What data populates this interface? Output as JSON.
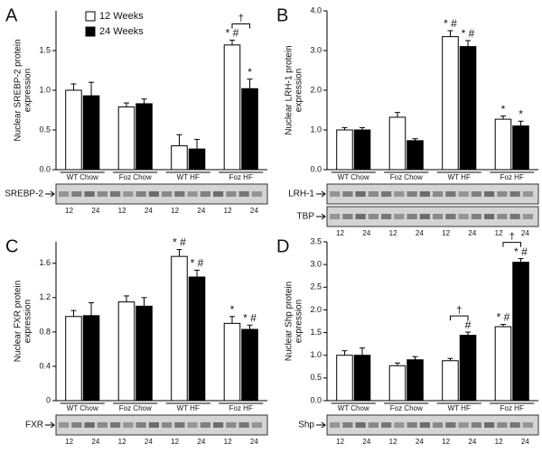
{
  "legend": [
    {
      "name": "12 Weeks",
      "color": "#ffffff"
    },
    {
      "name": "24 Weeks",
      "color": "#000000"
    }
  ],
  "chart_data": [
    {
      "type": "bar",
      "panel": "A",
      "y_label": [
        "Nuclear SREBP-2 protein",
        "expression"
      ],
      "categories": [
        "WT Chow",
        "Foz Chow",
        "WT HF",
        "Foz HF"
      ],
      "series": [
        {
          "color": "#ffffff",
          "values": [
            1.0,
            0.79,
            0.3,
            1.57
          ],
          "errors": [
            0.08,
            0.05,
            0.14,
            0.06
          ],
          "markers": [
            null,
            null,
            null,
            "* #"
          ]
        },
        {
          "color": "#000000",
          "values": [
            0.93,
            0.83,
            0.26,
            1.02
          ],
          "errors": [
            0.17,
            0.06,
            0.12,
            0.12
          ],
          "markers": [
            null,
            null,
            null,
            "*"
          ]
        }
      ],
      "brackets": [
        null,
        null,
        null,
        "†"
      ],
      "ylim": [
        0,
        2.0
      ],
      "yticks": [
        {
          "value": 0,
          "label": "0.0"
        },
        0.5,
        {
          "value": 1,
          "label": "1.0"
        },
        1.5
      ],
      "blots": [
        "SREBP-2"
      ],
      "lanes": [
        "12",
        "24",
        "12",
        "24",
        "12",
        "24",
        "12",
        "24"
      ]
    },
    {
      "type": "bar",
      "panel": "B",
      "y_label": [
        "Nuclear LRH-1 protein",
        "expression"
      ],
      "categories": [
        "WT Chow",
        "Foz Chow",
        "WT HF",
        "Foz HF"
      ],
      "series": [
        {
          "color": "#ffffff",
          "values": [
            1.0,
            1.32,
            3.35,
            1.27
          ],
          "errors": [
            0.06,
            0.12,
            0.15,
            0.08
          ],
          "markers": [
            null,
            null,
            "* #",
            "*"
          ]
        },
        {
          "color": "#000000",
          "values": [
            1.0,
            0.73,
            3.1,
            1.1
          ],
          "errors": [
            0.06,
            0.05,
            0.15,
            0.12
          ],
          "markers": [
            null,
            null,
            "* #",
            "*"
          ]
        }
      ],
      "brackets": [
        null,
        null,
        null,
        null
      ],
      "ylim": [
        0,
        4.0
      ],
      "yticks": [
        {
          "value": 0,
          "label": "0.0"
        },
        {
          "value": 1,
          "label": "1.0"
        },
        {
          "value": 2,
          "label": "2.0"
        },
        {
          "value": 3,
          "label": "3.0"
        },
        {
          "value": 4,
          "label": "4.0"
        }
      ],
      "blots": [
        "LRH-1",
        "TBP"
      ],
      "lanes": [
        "12",
        "24",
        "12",
        "24",
        "12",
        "24",
        "12",
        "24"
      ]
    },
    {
      "type": "bar",
      "panel": "C",
      "y_label": [
        "Nuclear FXR protein",
        "expression"
      ],
      "categories": [
        "WT Chow",
        "Foz Chow",
        "WT HF",
        "Foz HF"
      ],
      "series": [
        {
          "color": "#ffffff",
          "values": [
            0.98,
            1.15,
            1.68,
            0.9
          ],
          "errors": [
            0.07,
            0.07,
            0.08,
            0.08
          ],
          "markers": [
            null,
            null,
            "* #",
            "*"
          ]
        },
        {
          "color": "#000000",
          "values": [
            0.99,
            1.1,
            1.44,
            0.83
          ],
          "errors": [
            0.15,
            0.1,
            0.08,
            0.05
          ],
          "markers": [
            null,
            null,
            "* #",
            "* #"
          ]
        }
      ],
      "brackets": [
        null,
        null,
        null,
        null
      ],
      "ylim": [
        0,
        1.85
      ],
      "yticks": [
        0,
        0.4,
        0.8,
        1.2,
        1.6
      ],
      "blots": [
        "FXR"
      ],
      "lanes": [
        "12",
        "24",
        "12",
        "24",
        "12",
        "24",
        "12",
        "24"
      ]
    },
    {
      "type": "bar",
      "panel": "D",
      "y_label": [
        "Nuclear Shp protein",
        "expression"
      ],
      "categories": [
        "WT Chow",
        "Foz Chow",
        "WT HF",
        "Foz HF"
      ],
      "series": [
        {
          "color": "#ffffff",
          "values": [
            1.0,
            0.77,
            0.88,
            1.63
          ],
          "errors": [
            0.1,
            0.06,
            0.05,
            0.05
          ],
          "markers": [
            null,
            null,
            null,
            "* #"
          ]
        },
        {
          "color": "#000000",
          "values": [
            1.0,
            0.9,
            1.44,
            3.05
          ],
          "errors": [
            0.16,
            0.07,
            0.07,
            0.08
          ],
          "markers": [
            null,
            null,
            "#",
            "* #"
          ]
        }
      ],
      "brackets": [
        null,
        null,
        "†",
        "†"
      ],
      "ylim": [
        0,
        3.5
      ],
      "yticks": [
        {
          "value": 0,
          "label": "0.0"
        },
        0.5,
        {
          "value": 1,
          "label": "1.0"
        },
        1.5,
        {
          "value": 2,
          "label": "2.0"
        },
        2.5,
        {
          "value": 3,
          "label": "3.0"
        },
        3.5
      ],
      "blots": [
        "Shp"
      ],
      "lanes": [
        "12",
        "24",
        "12",
        "24",
        "12",
        "24",
        "12",
        "24"
      ]
    }
  ]
}
